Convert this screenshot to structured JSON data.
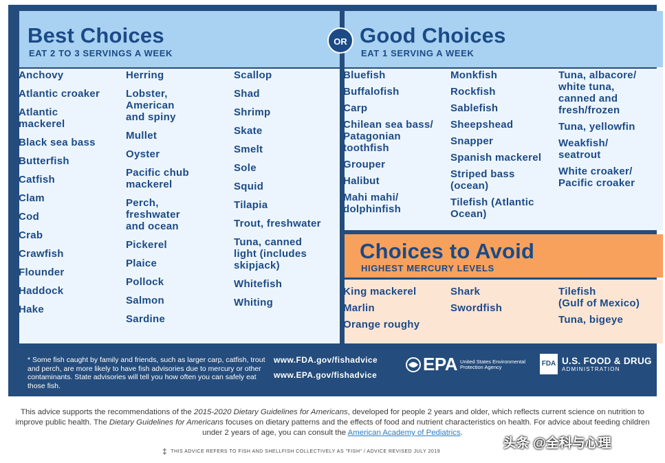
{
  "best": {
    "title": "Best Choices",
    "subtitle": "EAT 2 TO 3 SERVINGS A WEEK",
    "col1": [
      "Anchovy",
      "Atlantic croaker",
      "Atlantic\nmackerel",
      "Black sea bass",
      "Butterfish",
      "Catfish",
      "Clam",
      "Cod",
      "Crab",
      "Crawfish",
      "Flounder",
      "Haddock",
      "Hake"
    ],
    "col2": [
      "Herring",
      "Lobster,\nAmerican\nand spiny",
      "Mullet",
      "Oyster",
      "Pacific chub\nmackerel",
      "Perch,\nfreshwater\nand ocean",
      "Pickerel",
      "Plaice",
      "Pollock",
      "Salmon",
      "Sardine"
    ],
    "col3": [
      "Scallop",
      "Shad",
      "Shrimp",
      "Skate",
      "Smelt",
      "Sole",
      "Squid",
      "Tilapia",
      "Trout, freshwater",
      "Tuna, canned\nlight (includes\nskipjack)",
      "Whitefish",
      "Whiting"
    ]
  },
  "or_label": "OR",
  "good": {
    "title": "Good Choices",
    "subtitle": "EAT 1 SERVING A WEEK",
    "col1": [
      "Bluefish",
      "Buffalofish",
      "Carp",
      "Chilean sea bass/\nPatagonian\ntoothfish",
      "Grouper",
      "Halibut",
      "Mahi mahi/\ndolphinfish"
    ],
    "col2": [
      "Monkfish",
      "Rockfish",
      "Sablefish",
      "Sheepshead",
      "Snapper",
      "Spanish mackerel",
      "Striped bass\n(ocean)",
      "Tilefish (Atlantic\nOcean)"
    ],
    "col3": [
      "Tuna, albacore/\nwhite tuna,\ncanned and\nfresh/frozen",
      "Tuna, yellowfin",
      "Weakfish/\nseatrout",
      "White croaker/\nPacific croaker"
    ]
  },
  "avoid": {
    "title": "Choices to Avoid",
    "subtitle": "HIGHEST MERCURY LEVELS",
    "col1": [
      "King mackerel",
      "Marlin",
      "Orange roughy"
    ],
    "col2": [
      "Shark",
      "Swordfish"
    ],
    "col3": [
      "Tilefish\n(Gulf of Mexico)",
      "Tuna, bigeye"
    ]
  },
  "footer": {
    "note": "* Some fish caught by family and friends, such as larger carp, catfish, trout and perch, are more likely to have fish advisories due to mercury or other contaminants. State advisories will tell you how often you can safely eat those fish.",
    "url_fda": "www.FDA.gov/fishadvice",
    "url_epa": "www.EPA.gov/fishadvice",
    "epa_mark": "EPA",
    "epa_text": "United States Environmental Protection Agency",
    "fda_box": "FDA",
    "fda_line1": "U.S. FOOD & DRUG",
    "fda_line2": "ADMINISTRATION"
  },
  "bottom": {
    "p1": "This advice supports the recommendations of the ",
    "p1_italic": "2015-2020 Dietary Guidelines for Americans",
    "p2": ", developed for people 2 years and older, which reflects current science on nutrition to improve public health. The ",
    "p2_italic": "Dietary Guidelines for Americans",
    "p3": " focuses on dietary patterns and the effects of food and nutrient characteristics on health. For advice about feeding children under 2 years of age, you can consult the ",
    "link": "American Academy of Pediatrics",
    "p4": ".",
    "revised": "THIS ADVICE REFERS TO FISH AND SHELLFISH COLLECTIVELY AS \"FISH\" / ADVICE REVISED JULY 2019",
    "watermark": "头条 @全科与心理"
  },
  "colors": {
    "navy": "#244c7c",
    "title_blue": "#1c4a86",
    "best_header": "#a8d1f2",
    "avoid_header": "#f7a15d",
    "avoid_body": "#fde5d4"
  }
}
